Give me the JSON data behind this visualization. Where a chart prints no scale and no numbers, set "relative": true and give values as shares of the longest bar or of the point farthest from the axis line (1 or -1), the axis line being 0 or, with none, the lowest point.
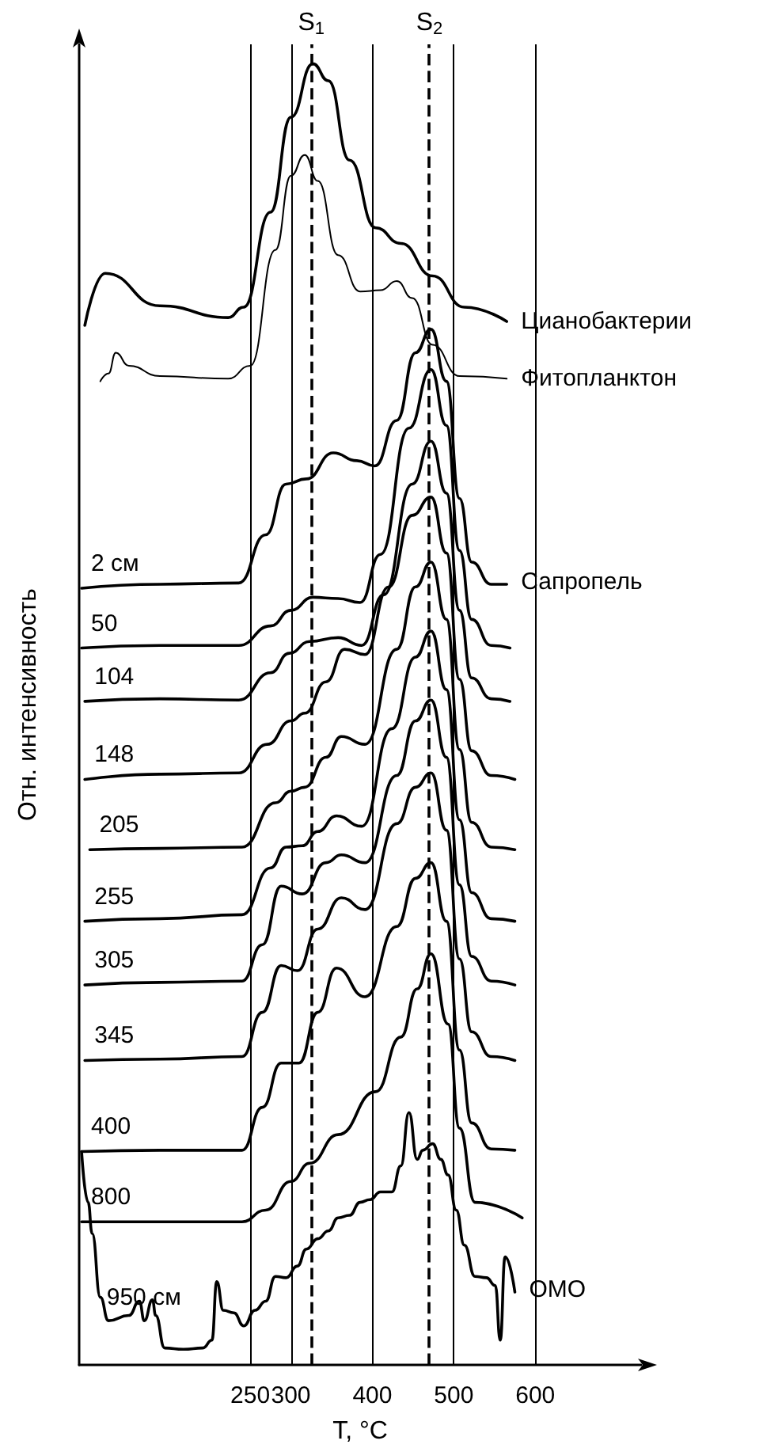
{
  "chart_data": {
    "type": "line",
    "relative": true,
    "xlabel": "T, °C",
    "ylabel": "Отн. интенсивность",
    "xlim": [
      40,
      730
    ],
    "xticks": [
      250,
      300,
      400,
      500,
      600
    ],
    "grid": "x",
    "legend": false,
    "marker": "none",
    "line_style": "solid",
    "tick_labels": "x",
    "ref_lines": [
      {
        "axis": "x",
        "value": 325,
        "label": "S$_{1}$",
        "line_style": "dashed"
      },
      {
        "axis": "x",
        "value": 470,
        "label": "S$_{2}$",
        "line_style": "dashed"
      }
    ],
    "annotations": [
      {
        "text": "Сапропель",
        "x": 565,
        "y": 0.6
      },
      {
        "text": "ОМО",
        "x": 575,
        "y": 0.056
      }
    ],
    "series": [
      {
        "name": "Цианобактерии",
        "color": "#000000",
        "x": [
          47,
          72,
          139,
          223,
          242,
          275,
          300,
          327,
          346,
          372,
          404,
          435,
          474,
          513,
          565
        ],
        "values": [
          0.799,
          0.839,
          0.814,
          0.805,
          0.813,
          0.886,
          0.959,
          1.0,
          0.987,
          0.926,
          0.874,
          0.862,
          0.837,
          0.813,
          0.802
        ]
      },
      {
        "name": "Фитопланктон",
        "color": "#000000",
        "x": [
          66,
          76,
          85,
          101,
          139,
          223,
          250,
          281,
          300,
          317,
          333,
          358,
          385,
          410,
          430,
          449,
          474,
          507,
          565
        ],
        "values": [
          0.756,
          0.762,
          0.778,
          0.768,
          0.76,
          0.758,
          0.768,
          0.857,
          0.914,
          0.93,
          0.91,
          0.853,
          0.825,
          0.826,
          0.833,
          0.82,
          0.784,
          0.76,
          0.758
        ]
      },
      {
        "name": "2 см",
        "color": "#000000",
        "x": [
          43,
          139,
          236,
          269,
          294,
          319,
          352,
          381,
          403,
          430,
          453,
          472,
          491,
          507,
          522,
          546,
          565
        ],
        "values": [
          0.597,
          0.6,
          0.601,
          0.638,
          0.677,
          0.681,
          0.701,
          0.695,
          0.691,
          0.726,
          0.778,
          0.796,
          0.756,
          0.666,
          0.617,
          0.6,
          0.6
        ]
      },
      {
        "name": "50",
        "color": "#000000",
        "x": [
          43,
          139,
          236,
          275,
          300,
          327,
          358,
          385,
          410,
          445,
          472,
          491,
          507,
          522,
          546,
          569
        ],
        "values": [
          0.551,
          0.553,
          0.553,
          0.568,
          0.58,
          0.59,
          0.589,
          0.586,
          0.623,
          0.72,
          0.765,
          0.722,
          0.626,
          0.573,
          0.553,
          0.551
        ]
      },
      {
        "name": "104",
        "color": "#000000",
        "x": [
          47,
          139,
          236,
          275,
          298,
          323,
          358,
          387,
          414,
          449,
          472,
          491,
          507,
          522,
          546,
          569
        ],
        "values": [
          0.51,
          0.512,
          0.511,
          0.532,
          0.547,
          0.556,
          0.559,
          0.553,
          0.592,
          0.677,
          0.71,
          0.67,
          0.58,
          0.528,
          0.512,
          0.51
        ]
      },
      {
        "name": "148",
        "color": "#000000",
        "x": [
          47,
          139,
          236,
          271,
          300,
          317,
          343,
          366,
          391,
          420,
          449,
          472,
          491,
          507,
          522,
          546,
          575
        ],
        "values": [
          0.45,
          0.454,
          0.455,
          0.477,
          0.495,
          0.501,
          0.525,
          0.55,
          0.546,
          0.598,
          0.653,
          0.667,
          0.624,
          0.527,
          0.472,
          0.453,
          0.45
        ]
      },
      {
        "name": "205",
        "color": "#000000",
        "x": [
          53,
          139,
          240,
          281,
          300,
          317,
          343,
          362,
          391,
          430,
          453,
          472,
          491,
          507,
          522,
          546,
          575
        ],
        "values": [
          0.396,
          0.397,
          0.398,
          0.432,
          0.441,
          0.444,
          0.467,
          0.483,
          0.477,
          0.55,
          0.598,
          0.617,
          0.573,
          0.473,
          0.417,
          0.398,
          0.396
        ]
      },
      {
        "name": "255",
        "color": "#000000",
        "x": [
          47,
          139,
          240,
          275,
          294,
          314,
          333,
          356,
          387,
          424,
          453,
          472,
          491,
          507,
          522,
          546,
          575
        ],
        "values": [
          0.341,
          0.343,
          0.346,
          0.382,
          0.398,
          0.399,
          0.41,
          0.422,
          0.414,
          0.489,
          0.544,
          0.564,
          0.519,
          0.419,
          0.363,
          0.343,
          0.341
        ]
      },
      {
        "name": "305",
        "color": "#000000",
        "x": [
          47,
          139,
          240,
          265,
          288,
          314,
          343,
          362,
          391,
          430,
          453,
          472,
          491,
          507,
          522,
          546,
          575
        ],
        "values": [
          0.292,
          0.294,
          0.295,
          0.323,
          0.368,
          0.362,
          0.386,
          0.392,
          0.386,
          0.453,
          0.495,
          0.511,
          0.467,
          0.369,
          0.314,
          0.295,
          0.292
        ]
      },
      {
        "name": "345",
        "color": "#000000",
        "x": [
          47,
          139,
          240,
          265,
          288,
          308,
          333,
          362,
          391,
          430,
          453,
          472,
          491,
          507,
          522,
          546,
          575
        ],
        "values": [
          0.234,
          0.235,
          0.237,
          0.271,
          0.307,
          0.303,
          0.335,
          0.359,
          0.35,
          0.416,
          0.444,
          0.455,
          0.411,
          0.312,
          0.256,
          0.237,
          0.234
        ]
      },
      {
        "name": "400",
        "color": "#000000",
        "x": [
          43,
          139,
          240,
          265,
          288,
          310,
          333,
          356,
          391,
          430,
          453,
          472,
          491,
          507,
          522,
          546,
          575
        ],
        "values": [
          0.164,
          0.165,
          0.165,
          0.198,
          0.232,
          0.232,
          0.271,
          0.305,
          0.283,
          0.337,
          0.374,
          0.386,
          0.341,
          0.242,
          0.186,
          0.166,
          0.165
        ]
      },
      {
        "name": "800",
        "color": "#000000",
        "x": [
          43,
          139,
          240,
          269,
          300,
          323,
          358,
          404,
          435,
          455,
          472,
          493,
          507,
          526,
          584
        ],
        "values": [
          0.11,
          0.11,
          0.11,
          0.119,
          0.141,
          0.155,
          0.177,
          0.21,
          0.252,
          0.289,
          0.316,
          0.262,
          0.182,
          0.125,
          0.113
        ]
      },
      {
        "name": "950 см",
        "color": "#000000",
        "x": [
          43,
          51,
          56,
          66,
          76,
          101,
          114,
          120,
          130,
          134,
          145,
          168,
          192,
          203,
          209,
          217,
          230,
          242,
          256,
          269,
          281,
          294,
          308,
          319,
          333,
          346,
          358,
          372,
          385,
          397,
          410,
          424,
          435,
          445,
          455,
          462,
          474,
          484,
          493,
          503,
          513,
          526,
          540,
          551,
          557,
          563,
          575
        ],
        "values": [
          0.164,
          0.125,
          0.101,
          0.052,
          0.034,
          0.038,
          0.049,
          0.034,
          0.05,
          0.038,
          0.013,
          0.012,
          0.013,
          0.019,
          0.064,
          0.042,
          0.04,
          0.03,
          0.042,
          0.049,
          0.068,
          0.067,
          0.076,
          0.089,
          0.097,
          0.103,
          0.113,
          0.115,
          0.125,
          0.127,
          0.133,
          0.133,
          0.153,
          0.194,
          0.158,
          0.165,
          0.17,
          0.158,
          0.146,
          0.119,
          0.092,
          0.068,
          0.067,
          0.061,
          0.019,
          0.083,
          0.056
        ]
      }
    ]
  }
}
